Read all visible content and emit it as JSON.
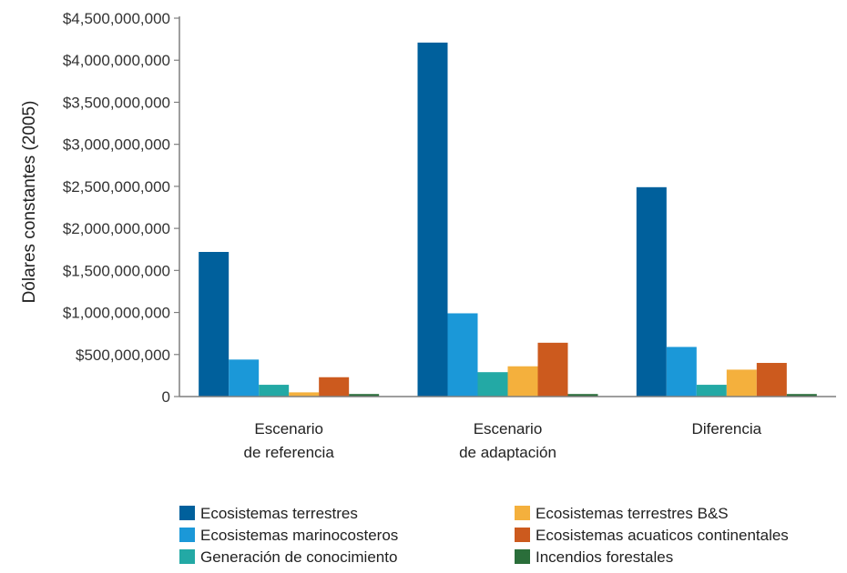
{
  "chart_data": {
    "type": "bar",
    "title": "",
    "xlabel": "",
    "ylabel": "Dólares constantes (2005)",
    "ylim": [
      0,
      4500000000
    ],
    "yticks": [
      "0",
      "$500,000,000",
      "$1,000,000,000",
      "$1,500,000,000",
      "$2,000,000,000",
      "$2,500,000,000",
      "$3,000,000,000",
      "$3,500,000,000",
      "$4,000,000,000",
      "$4,500,000,000"
    ],
    "categories": [
      [
        "Escenario",
        "de referencia"
      ],
      [
        "Escenario",
        "de adaptación"
      ],
      [
        "Diferencia"
      ]
    ],
    "grid": false,
    "legend_position": "bottom",
    "series": [
      {
        "name": "Ecosistemas terrestres",
        "color": "#00609c",
        "values": [
          1720000000,
          4210000000,
          2490000000
        ]
      },
      {
        "name": "Ecosistemas marinocosteros",
        "color": "#1b98d8",
        "values": [
          440000000,
          990000000,
          590000000
        ]
      },
      {
        "name": "Generación de conocimiento",
        "color": "#23a9a5",
        "values": [
          140000000,
          290000000,
          140000000
        ]
      },
      {
        "name": "Ecosistemas terrestres B&S",
        "color": "#f4b03d",
        "values": [
          50000000,
          360000000,
          320000000
        ]
      },
      {
        "name": "Ecosistemas acuaticos continentales",
        "color": "#cc5a1e",
        "values": [
          230000000,
          640000000,
          400000000
        ]
      },
      {
        "name": "Incendios forestales",
        "color": "#2a6e3a",
        "values": [
          30000000,
          30000000,
          30000000
        ]
      }
    ],
    "legend_order": [
      0,
      3,
      1,
      4,
      2,
      5
    ]
  }
}
